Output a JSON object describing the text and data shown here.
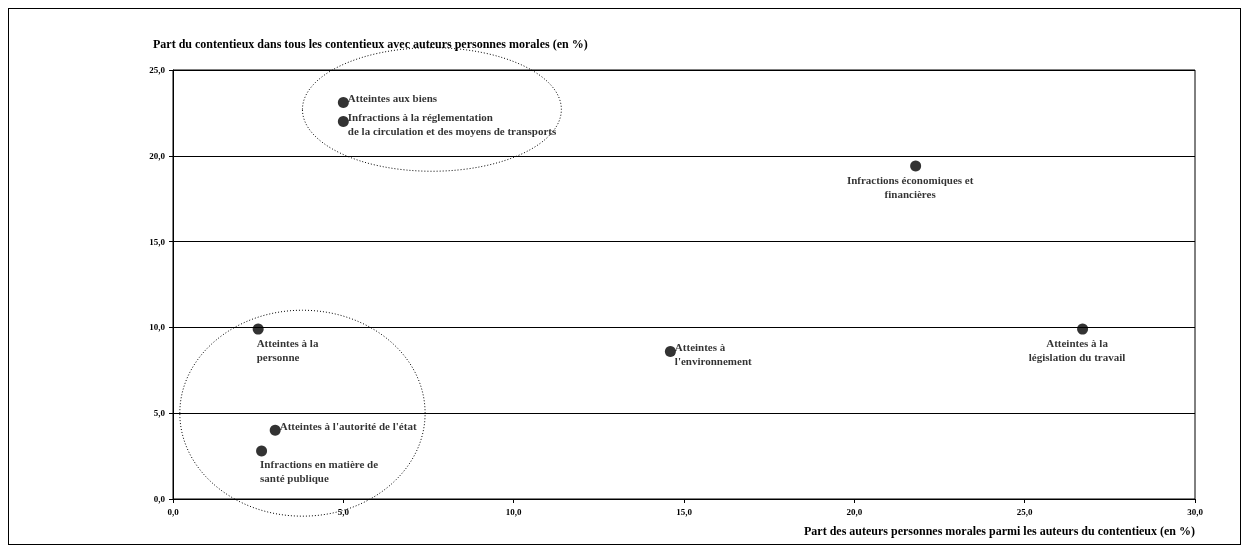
{
  "chart_data": {
    "type": "scatter",
    "xlabel": "Part des auteurs personnes morales parmi les auteurs du contentieux (en %)",
    "ylabel": "Part du contentieux dans tous les contentieux avec auteurs personnes morales (en %)",
    "x": [
      5.0,
      5.0,
      21.8,
      2.5,
      14.6,
      26.7,
      3.0,
      2.6
    ],
    "series": [
      {
        "color": "#000000",
        "values": [
          23.1,
          22.0,
          19.4,
          9.9,
          8.6,
          9.9,
          4.0,
          2.8
        ]
      }
    ],
    "annotations": [
      "Atteintes aux biens",
      "Infractions à la réglementation\nde la circulation et des moyens de transports",
      "Infractions économiques et\nfinancières",
      "Atteintes à la\npersonne",
      "Atteintes à\nl'environnement",
      "Atteintes à la\nlégislation du travail",
      "Atteintes à l'autorité de l'état",
      "Infractions en matière de\nsanté publique"
    ],
    "xlim": [
      0,
      30
    ],
    "xticks": [
      {
        "value": 0,
        "label": "0,0"
      },
      {
        "value": 5,
        "label": "5,0"
      },
      {
        "value": 10,
        "label": "10,0"
      },
      {
        "value": 15,
        "label": "15,0"
      },
      {
        "value": 20,
        "label": "20,0"
      },
      {
        "value": 25,
        "label": "25,0"
      },
      {
        "value": 30,
        "label": "30,0"
      }
    ],
    "ylim": [
      0,
      25
    ],
    "yticks": [
      {
        "value": 0,
        "label": "0,0"
      },
      {
        "value": 5,
        "label": "5,0"
      },
      {
        "value": 10,
        "label": "10,0"
      },
      {
        "value": 15,
        "label": "15,0"
      },
      {
        "value": 20,
        "label": "20,0"
      },
      {
        "value": 25,
        "label": "25,0"
      }
    ],
    "grid": "y",
    "marker": "circle"
  }
}
